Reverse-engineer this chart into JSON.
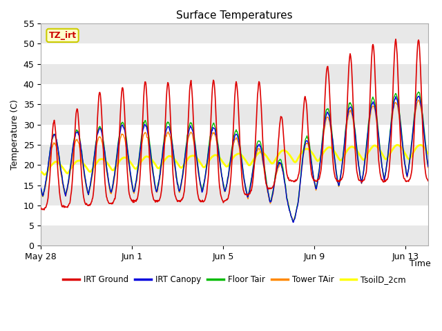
{
  "title": "Surface Temperatures",
  "xlabel": "Time",
  "ylabel": "Temperature (C)",
  "ylim": [
    0,
    55
  ],
  "yticks": [
    0,
    5,
    10,
    15,
    20,
    25,
    30,
    35,
    40,
    45,
    50,
    55
  ],
  "xtick_labels": [
    "May 28",
    "Jun 1",
    "Jun 5",
    "Jun 9",
    "Jun 13"
  ],
  "xtick_positions": [
    0,
    4,
    8,
    12,
    16
  ],
  "series": {
    "IRT Ground": {
      "color": "#dd0000",
      "lw": 1.2
    },
    "IRT Canopy": {
      "color": "#0000dd",
      "lw": 1.0
    },
    "Floor Tair": {
      "color": "#00bb00",
      "lw": 1.0
    },
    "Tower TAir": {
      "color": "#ff8800",
      "lw": 1.0
    },
    "TsoilD_2cm": {
      "color": "#ffff00",
      "lw": 2.0
    }
  },
  "legend_order": [
    "IRT Ground",
    "IRT Canopy",
    "Floor Tair",
    "Tower TAir",
    "TsoilD_2cm"
  ],
  "annotation_text": "TZ_irt",
  "annotation_color": "#cc0000",
  "annotation_bg": "#ffffcc",
  "annotation_border": "#cccc00",
  "background_plot": "#ffffff",
  "background_fig": "#ffffff",
  "band_colors": [
    "#e8e8e8",
    "#ffffff"
  ],
  "n_days": 17,
  "pts_per_day": 48
}
